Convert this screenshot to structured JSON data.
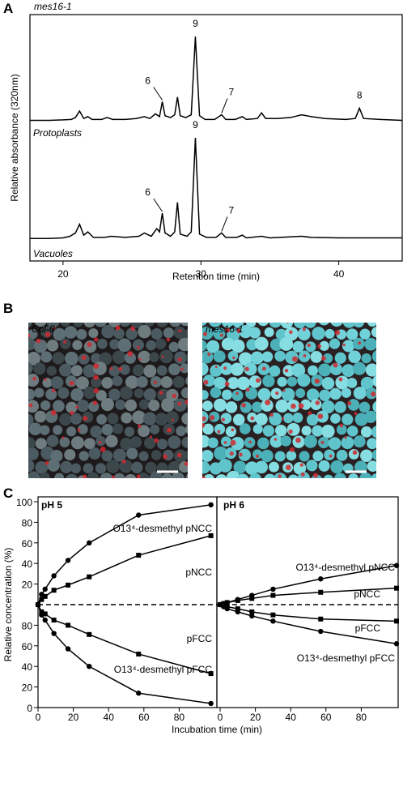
{
  "panel_labels": [
    "A",
    "B",
    "C"
  ],
  "micrographs": [
    {
      "label": "Col-0"
    },
    {
      "label": "mes16-1"
    }
  ],
  "chart_data": [
    {
      "type": "line",
      "title": "mes16-1",
      "ylabel": "Relative absorbance (320nm)",
      "xlim": [
        17.6,
        44.6
      ],
      "ylim": [
        0,
        100
      ],
      "x": [
        17.6,
        19,
        20,
        20.6,
        20.9,
        21.2,
        21.5,
        21.8,
        22.1,
        22.8,
        23.2,
        23.6,
        24.5,
        25.3,
        25.9,
        26.3,
        26.7,
        27.0,
        27.2,
        27.4,
        27.8,
        28.1,
        28.3,
        28.5,
        28.9,
        29.3,
        29.6,
        29.9,
        30.3,
        31.0,
        31.5,
        31.8,
        32.5,
        33.0,
        33.3,
        34.1,
        34.4,
        34.7,
        35.5,
        36.5,
        37.3,
        38,
        39,
        40.5,
        41.2,
        41.5,
        41.8,
        43,
        44.6
      ],
      "series": [
        {
          "name": "Protoplasts",
          "color": "#000000",
          "values": [
            10,
            10,
            10.5,
            11,
            13,
            20,
            12,
            14,
            11,
            11,
            13,
            11,
            11,
            12,
            14,
            12,
            17,
            14,
            30,
            15,
            13,
            16,
            35,
            15,
            13,
            16,
            100,
            15,
            11,
            11,
            16,
            11,
            11,
            14,
            11,
            12,
            18,
            12,
            12,
            13,
            16,
            14,
            12,
            11,
            12,
            23,
            12,
            11,
            10
          ]
        }
      ],
      "annotations": [
        {
          "label": "6",
          "x": 27.2
        },
        {
          "label": "9",
          "x": 29.6
        },
        {
          "label": "7",
          "x": 31.5
        },
        {
          "label": "8",
          "x": 41.5
        }
      ]
    },
    {
      "type": "line",
      "xlabel": "Retention time (min)",
      "xlim": [
        17.6,
        44.6
      ],
      "ylim": [
        0,
        100
      ],
      "xticks": [
        20,
        30,
        40
      ],
      "x": [
        17.6,
        19,
        20,
        20.5,
        20.9,
        21.2,
        21.5,
        21.8,
        22.2,
        23,
        23.5,
        24.5,
        25.5,
        25.9,
        26.4,
        26.8,
        27.0,
        27.2,
        27.4,
        27.8,
        28.1,
        28.3,
        28.5,
        29.0,
        29.3,
        29.6,
        29.9,
        30.4,
        31.1,
        31.5,
        31.8,
        32.6,
        33.0,
        33.3,
        34.4,
        35,
        37.3,
        38,
        40,
        44.6
      ],
      "series": [
        {
          "name": "Vacuoles",
          "color": "#000000",
          "values": [
            8,
            8,
            8.5,
            10,
            13,
            21,
            11,
            14,
            9,
            9,
            10,
            9,
            10,
            13,
            10,
            17,
            14,
            31,
            13,
            10,
            14,
            41,
            12,
            10,
            14,
            100,
            12,
            9,
            9,
            13,
            9,
            9,
            11,
            8.5,
            10,
            8.5,
            10,
            9,
            8.5,
            8.5
          ]
        }
      ],
      "annotations": [
        {
          "label": "9",
          "x": 29.6
        },
        {
          "label": "6",
          "x": 27.2
        },
        {
          "label": "7",
          "x": 31.5
        }
      ]
    },
    {
      "type": "line",
      "title": "pH 5",
      "xlabel": "Incubation time (min)",
      "ylabel": "Relative concentration (%)",
      "xlim": [
        0,
        100
      ],
      "xticks": [
        0,
        20,
        40,
        60,
        80
      ],
      "ylim": [
        0,
        100
      ],
      "yticks": [
        20,
        40,
        60,
        80,
        100
      ],
      "y2lim": [
        0,
        100
      ],
      "y2ticks": [
        0,
        20,
        40,
        60,
        80
      ],
      "x": [
        0,
        2,
        4,
        9,
        17,
        29,
        57,
        98
      ],
      "series": [
        {
          "name": "O13⁴-desmethyl pNCC",
          "color": "#000000",
          "marker": "circle",
          "values": [
            0,
            10,
            15,
            28,
            43,
            60,
            87,
            97
          ]
        },
        {
          "name": "pNCC",
          "color": "#000000",
          "marker": "square",
          "values": [
            0,
            5,
            8,
            14,
            19,
            27,
            48,
            67
          ]
        },
        {
          "name": "pFCC",
          "color": "#000000",
          "marker": "square",
          "axis": "y2",
          "values": [
            100,
            93,
            91,
            85,
            80,
            71,
            52,
            33
          ]
        },
        {
          "name": "O13⁴-desmethyl pFCC",
          "color": "#000000",
          "marker": "circle",
          "axis": "y2",
          "values": [
            100,
            90,
            85,
            72,
            57,
            40,
            14,
            4
          ]
        }
      ]
    },
    {
      "type": "line",
      "title": "pH 6",
      "xlim": [
        0,
        100
      ],
      "xticks": [
        0,
        20,
        40,
        60,
        80
      ],
      "ylim": [
        0,
        100
      ],
      "y2lim": [
        0,
        100
      ],
      "x": [
        0,
        2,
        4,
        10,
        18,
        30,
        57,
        100
      ],
      "series": [
        {
          "name": "O13⁴-desmethyl pNCC",
          "color": "#000000",
          "marker": "circle",
          "values": [
            0,
            1,
            2,
            5,
            9,
            15,
            25,
            38
          ]
        },
        {
          "name": "pNCC",
          "color": "#000000",
          "marker": "square",
          "values": [
            0,
            1,
            2,
            4,
            6,
            9,
            12,
            16
          ]
        },
        {
          "name": "pFCC",
          "color": "#000000",
          "marker": "square",
          "axis": "y2",
          "values": [
            100,
            99,
            98,
            96,
            93,
            90,
            86,
            84
          ]
        },
        {
          "name": "O13⁴-desmethyl pFCC",
          "color": "#000000",
          "marker": "circle",
          "axis": "y2",
          "values": [
            100,
            98,
            96,
            93,
            89,
            84,
            74,
            62
          ]
        }
      ]
    }
  ]
}
